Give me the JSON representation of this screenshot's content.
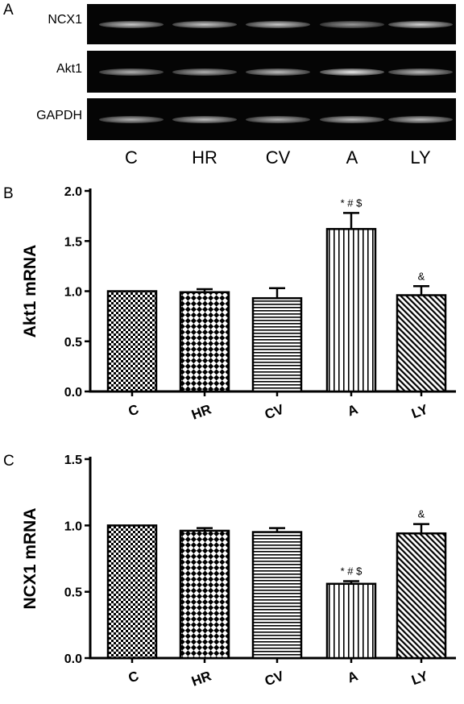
{
  "panels": {
    "a": "A",
    "b": "B",
    "c": "C"
  },
  "gel": {
    "rows": [
      "NCX1",
      "Akt1",
      "GAPDH"
    ],
    "lanes": [
      "C",
      "HR",
      "CV",
      "A",
      "LY"
    ],
    "band_intensity": [
      [
        0.85,
        0.85,
        0.85,
        0.65,
        0.9
      ],
      [
        0.75,
        0.75,
        0.8,
        1.0,
        0.8
      ],
      [
        0.75,
        0.8,
        0.75,
        0.8,
        0.8
      ]
    ]
  },
  "chart_data": [
    {
      "type": "bar",
      "ylabel": "Akt1 mRNA",
      "categories": [
        "C",
        "HR",
        "CV",
        "A",
        "LY"
      ],
      "values": [
        1.0,
        0.99,
        0.93,
        1.62,
        0.96
      ],
      "errors": [
        0.0,
        0.03,
        0.1,
        0.16,
        0.09
      ],
      "annotations": [
        "",
        "",
        "",
        "* # $",
        "&"
      ],
      "ylim": [
        0.0,
        2.0
      ],
      "yticks": [
        "0.0",
        "0.5",
        "1.0",
        "1.5",
        "2.0"
      ],
      "patterns": [
        "checker-fine",
        "checker-coarse",
        "horizontal",
        "vertical",
        "diagonal"
      ]
    },
    {
      "type": "bar",
      "ylabel": "NCX1 mRNA",
      "categories": [
        "C",
        "HR",
        "CV",
        "A",
        "LY"
      ],
      "values": [
        1.0,
        0.96,
        0.95,
        0.56,
        0.94
      ],
      "errors": [
        0.0,
        0.02,
        0.03,
        0.02,
        0.07
      ],
      "annotations": [
        "",
        "",
        "",
        "* # $",
        "&"
      ],
      "ylim": [
        0.0,
        1.5
      ],
      "yticks": [
        "0.0",
        "0.5",
        "1.0",
        "1.5"
      ],
      "patterns": [
        "checker-fine",
        "checker-coarse",
        "horizontal",
        "vertical",
        "diagonal"
      ]
    }
  ]
}
